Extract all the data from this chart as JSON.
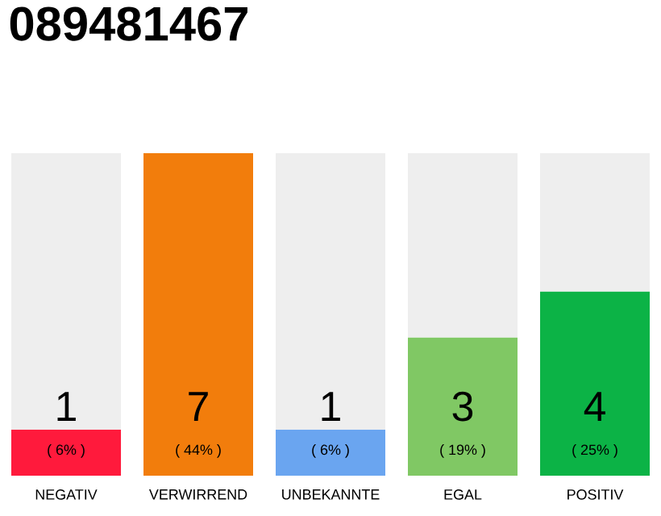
{
  "chart_data": {
    "type": "bar",
    "title": "089481467",
    "categories": [
      "NEGATIV",
      "VERWIRREND",
      "UNBEKANNTE",
      "EGAL",
      "POSITIV"
    ],
    "stacked": true,
    "series": [
      {
        "colors": [
          "#ff1a3c",
          "#f27d0c",
          "#6aa5f0",
          "#80c864",
          "#0cb346"
        ],
        "values": [
          1,
          7,
          1,
          3,
          4
        ],
        "value_labels": [
          "1",
          "7",
          "1",
          "3",
          "4"
        ]
      },
      {
        "color": "#eeeeee",
        "values": [
          6,
          0,
          6,
          4,
          3
        ]
      }
    ],
    "annotations": [
      "( 6% )",
      "( 44% )",
      "( 6% )",
      "( 19% )",
      "( 25% )"
    ]
  }
}
